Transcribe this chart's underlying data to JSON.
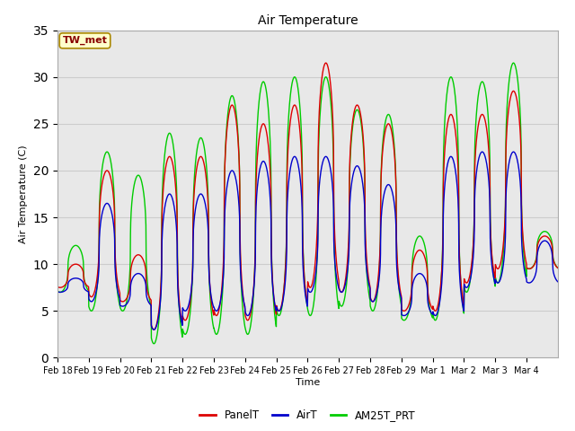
{
  "title": "Air Temperature",
  "ylabel": "Air Temperature (C)",
  "xlabel": "Time",
  "annotation_text": "TW_met",
  "annotation_color": "#880000",
  "annotation_bg": "#ffffcc",
  "annotation_border": "#aa8800",
  "ylim": [
    0,
    35
  ],
  "yticks": [
    0,
    5,
    10,
    15,
    20,
    25,
    30,
    35
  ],
  "x_tick_labels": [
    "Feb 18",
    "Feb 19",
    "Feb 20",
    "Feb 21",
    "Feb 22",
    "Feb 23",
    "Feb 24",
    "Feb 25",
    "Feb 26",
    "Feb 27",
    "Feb 28",
    "Feb 29",
    "Mar 1",
    "Mar 2",
    "Mar 3",
    "Mar 4"
  ],
  "line_colors": [
    "#dd0000",
    "#0000cc",
    "#00cc00"
  ],
  "line_labels": [
    "PanelT",
    "AirT",
    "AM25T_PRT"
  ],
  "grid_color": "#cccccc",
  "bg_color": "#e8e8e8",
  "lw": 1.0,
  "daily_peaks_panel": [
    10.0,
    20.0,
    11.0,
    21.5,
    21.5,
    27.0,
    25.0,
    27.0,
    31.5,
    27.0,
    25.0,
    11.5,
    26.0,
    26.0,
    28.5,
    13.0
  ],
  "daily_troughs_panel": [
    7.5,
    6.5,
    6.0,
    3.0,
    4.0,
    4.5,
    4.0,
    5.0,
    7.5,
    7.0,
    6.0,
    5.0,
    5.0,
    8.0,
    9.5,
    9.5
  ],
  "daily_peaks_air": [
    8.5,
    16.5,
    9.0,
    17.5,
    17.5,
    20.0,
    21.0,
    21.5,
    21.5,
    20.5,
    18.5,
    9.0,
    21.5,
    22.0,
    22.0,
    12.5
  ],
  "daily_troughs_air": [
    7.0,
    6.0,
    5.5,
    3.0,
    5.0,
    5.0,
    4.5,
    5.0,
    7.0,
    7.0,
    6.0,
    4.5,
    4.5,
    7.5,
    8.0,
    8.0
  ],
  "daily_peaks_am25": [
    12.0,
    22.0,
    19.5,
    24.0,
    23.5,
    28.0,
    29.5,
    30.0,
    30.0,
    26.5,
    26.0,
    13.0,
    30.0,
    29.5,
    31.5,
    13.5
  ],
  "daily_troughs_am25": [
    7.0,
    5.0,
    5.0,
    1.5,
    2.5,
    2.5,
    2.5,
    4.5,
    4.5,
    5.5,
    5.0,
    4.0,
    4.0,
    7.0,
    8.0,
    9.5
  ],
  "peak_sharpness": 2.5
}
